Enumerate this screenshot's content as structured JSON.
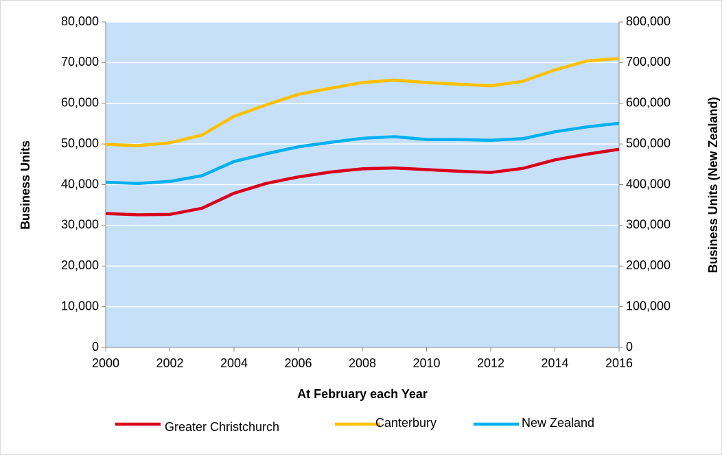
{
  "chart_data": {
    "type": "line",
    "xlabel": "At February each Year",
    "ylabel": "Business Units",
    "y2label": "Business Units (New Zealand)",
    "x": [
      2000,
      2001,
      2002,
      2003,
      2004,
      2005,
      2006,
      2007,
      2008,
      2009,
      2010,
      2011,
      2012,
      2013,
      2014,
      2015,
      2016
    ],
    "xlim": [
      2000,
      2016
    ],
    "xticks": [
      2000,
      2002,
      2004,
      2006,
      2008,
      2010,
      2012,
      2014,
      2016
    ],
    "ylim": [
      0,
      80000
    ],
    "yticks": [
      0,
      {
        "value": 10000,
        "label": "10,000"
      },
      {
        "value": 20000,
        "label": "20,000"
      },
      {
        "value": 30000,
        "label": "30,000"
      },
      {
        "value": 40000,
        "label": "40,000"
      },
      {
        "value": 50000,
        "label": "50,000"
      },
      {
        "value": 60000,
        "label": "60,000"
      },
      {
        "value": 70000,
        "label": "70,000"
      },
      {
        "value": 80000,
        "label": "80,000"
      }
    ],
    "y2lim": [
      0,
      800000
    ],
    "y2ticks": [
      0,
      {
        "value": 100000,
        "label": "100,000"
      },
      {
        "value": 200000,
        "label": "200,000"
      },
      {
        "value": 300000,
        "label": "300,000"
      },
      {
        "value": 400000,
        "label": "400,000"
      },
      {
        "value": 500000,
        "label": "500,000"
      },
      {
        "value": 600000,
        "label": "600,000"
      },
      {
        "value": 700000,
        "label": "700,000"
      },
      {
        "value": 800000,
        "label": "800,000"
      }
    ],
    "grid": true,
    "legend": "bottom",
    "background": "#c6e0fa",
    "series": [
      {
        "name": "Greater Christchurch",
        "color": "#d9001b",
        "values": [
          32900,
          32600,
          32700,
          34200,
          37900,
          40300,
          41900,
          43100,
          43900,
          44100,
          43700,
          43300,
          43000,
          44000,
          46100,
          47500,
          48700
        ]
      },
      {
        "name": "Canterbury",
        "color": "#ffc000",
        "values": [
          49900,
          49600,
          50300,
          52200,
          56800,
          59600,
          62200,
          63700,
          65100,
          65700,
          65100,
          64700,
          64300,
          65400,
          68200,
          70400,
          71000
        ]
      },
      {
        "name": "New Zealand",
        "color": "#00b0f0",
        "axis": "y2",
        "values": [
          406000,
          403000,
          408000,
          422000,
          457000,
          476000,
          493000,
          504000,
          514000,
          518000,
          511000,
          511000,
          509000,
          513000,
          530000,
          542000,
          551000
        ]
      }
    ]
  }
}
